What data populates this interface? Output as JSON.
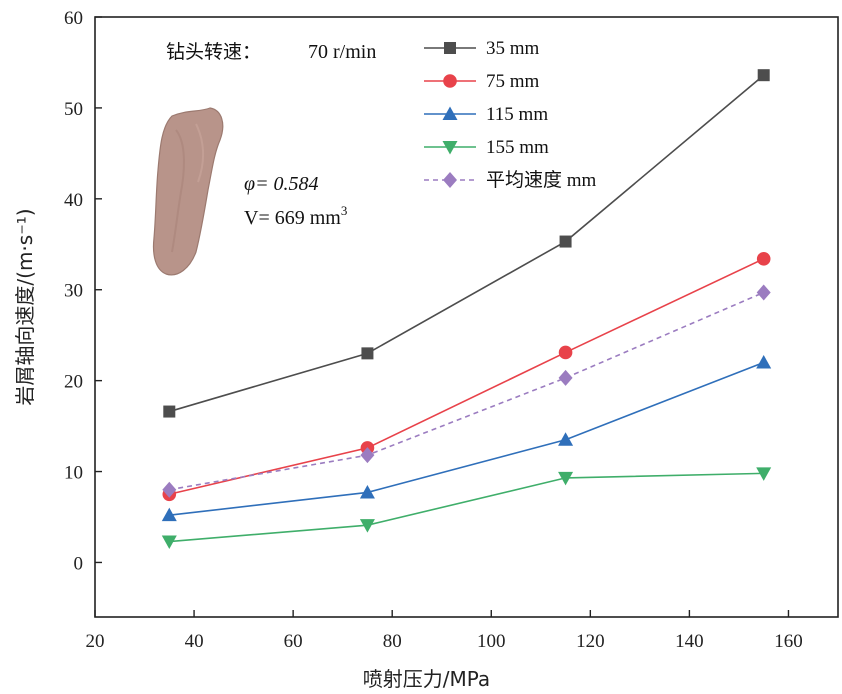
{
  "chart_data": {
    "type": "line",
    "xlabel": "喷射压力/MPa",
    "ylabel": "岩屑轴向速度/(m·s⁻¹)",
    "xlim": [
      20,
      170
    ],
    "ylim": [
      -6,
      60
    ],
    "xticks": [
      20,
      40,
      60,
      80,
      100,
      120,
      140,
      160
    ],
    "yticks": [
      0,
      10,
      20,
      30,
      40,
      50,
      60
    ],
    "x": [
      35,
      75,
      115,
      155
    ],
    "legend_position": "top-right",
    "grid": false,
    "series": [
      {
        "name": "35 mm",
        "values": [
          16.6,
          23.0,
          35.3,
          53.6
        ],
        "color": "#4d4d4d",
        "marker": "square",
        "dash": "solid"
      },
      {
        "name": "75 mm",
        "values": [
          7.5,
          12.6,
          23.1,
          33.4
        ],
        "color": "#e8424a",
        "marker": "circle",
        "dash": "solid"
      },
      {
        "name": "115 mm",
        "values": [
          5.2,
          7.7,
          13.5,
          22.0
        ],
        "color": "#2f6fba",
        "marker": "triangle-up",
        "dash": "solid"
      },
      {
        "name": "155 mm",
        "values": [
          2.3,
          4.1,
          9.3,
          9.8
        ],
        "color": "#3fae6a",
        "marker": "triangle-down",
        "dash": "solid"
      },
      {
        "name": "平均速度 mm",
        "values": [
          8.0,
          11.8,
          20.3,
          29.7
        ],
        "color": "#9b7cc0",
        "marker": "diamond",
        "dash": "dashed"
      }
    ],
    "annotations": {
      "speed_label": "钻头转速：",
      "speed_value": "70 r/min",
      "phi": "φ= 0.584",
      "volume": "V= 669 mm",
      "volume_exp": "3"
    }
  }
}
